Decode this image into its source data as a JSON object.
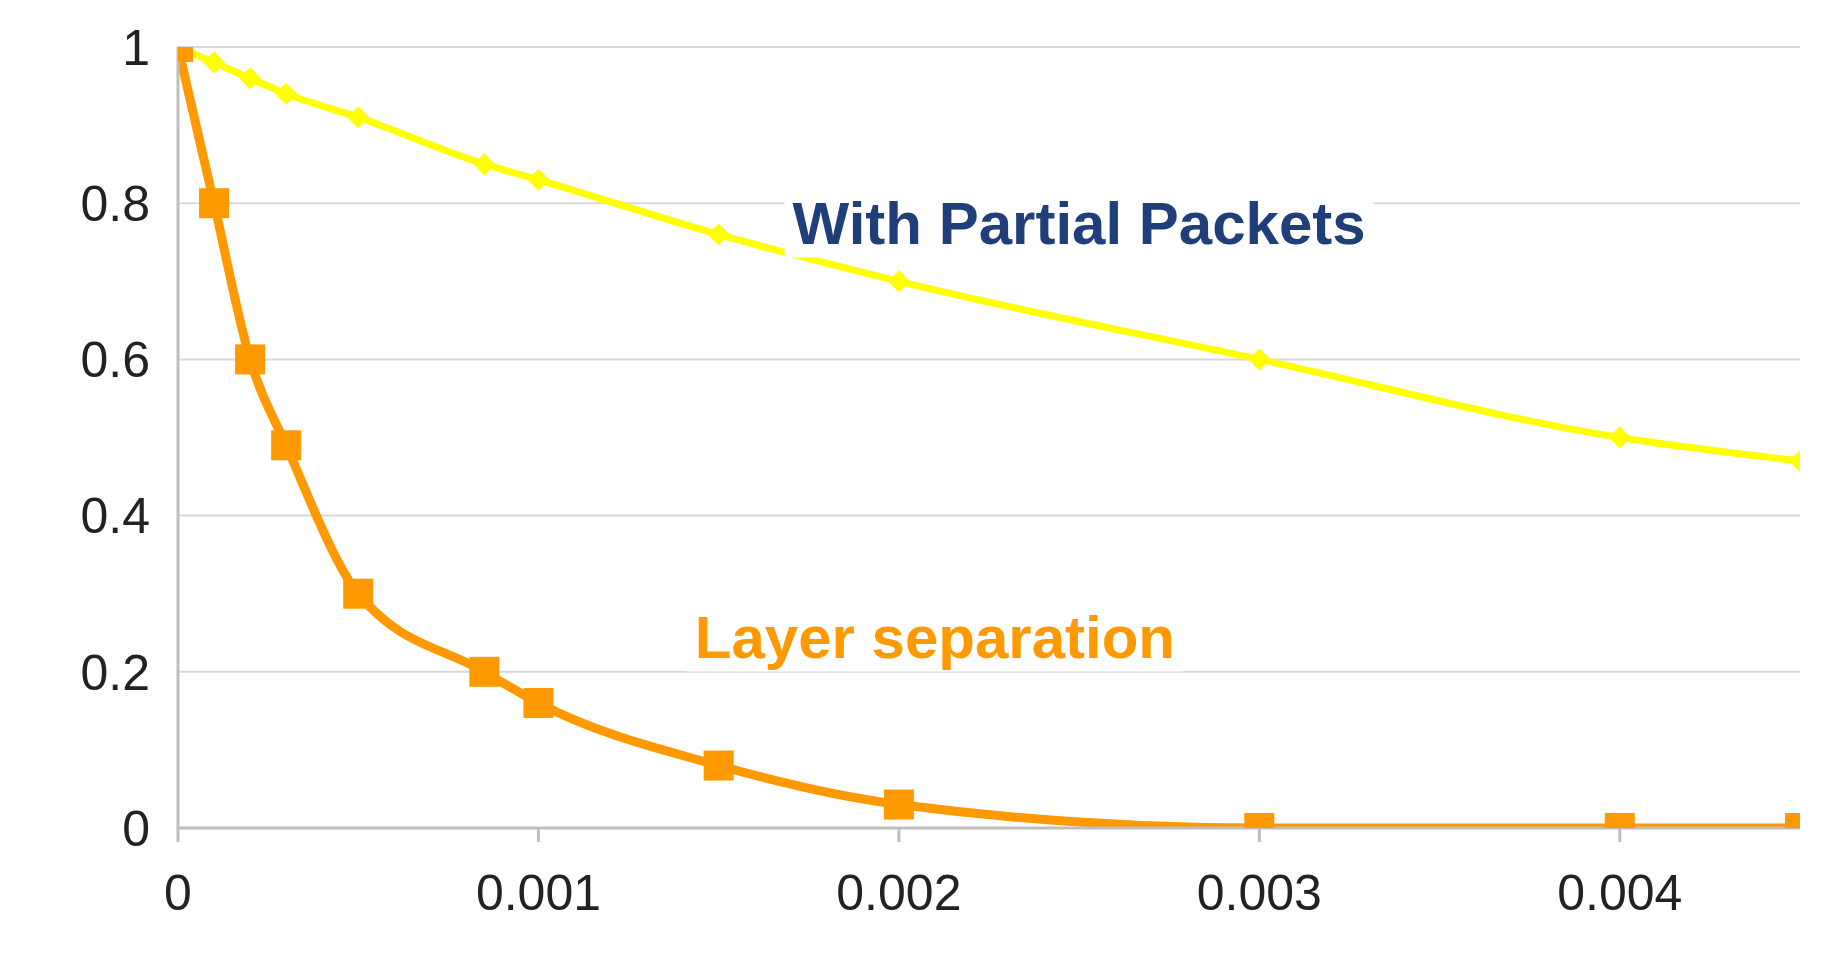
{
  "chart_data": {
    "type": "line",
    "xlim": [
      0,
      0.0045
    ],
    "xticks": [
      0,
      0.001,
      0.002,
      0.003,
      0.004
    ],
    "ylim": [
      0,
      1
    ],
    "yticks": [
      0,
      0.2,
      0.4,
      0.6,
      0.8,
      1
    ],
    "grid": "y",
    "legend": false,
    "series": [
      {
        "name": "With Partial Packets",
        "color": "#ffff00",
        "marker": "diamond",
        "x": [
          0,
          0.0001,
          0.0002,
          0.0003,
          0.0005,
          0.00085,
          0.001,
          0.0015,
          0.002,
          0.003,
          0.004,
          0.0045
        ],
        "values": [
          1,
          0.98,
          0.96,
          0.94,
          0.91,
          0.85,
          0.83,
          0.76,
          0.7,
          0.6,
          0.5,
          0.47
        ]
      },
      {
        "name": "Layer separation",
        "color": "#ff9900",
        "marker": "square",
        "x": [
          0,
          0.0001,
          0.0002,
          0.0003,
          0.0005,
          0.00085,
          0.001,
          0.0015,
          0.002,
          0.003,
          0.004,
          0.0045
        ],
        "values": [
          1,
          0.8,
          0.6,
          0.49,
          0.3,
          0.2,
          0.16,
          0.08,
          0.03,
          0,
          0,
          0
        ]
      }
    ]
  }
}
